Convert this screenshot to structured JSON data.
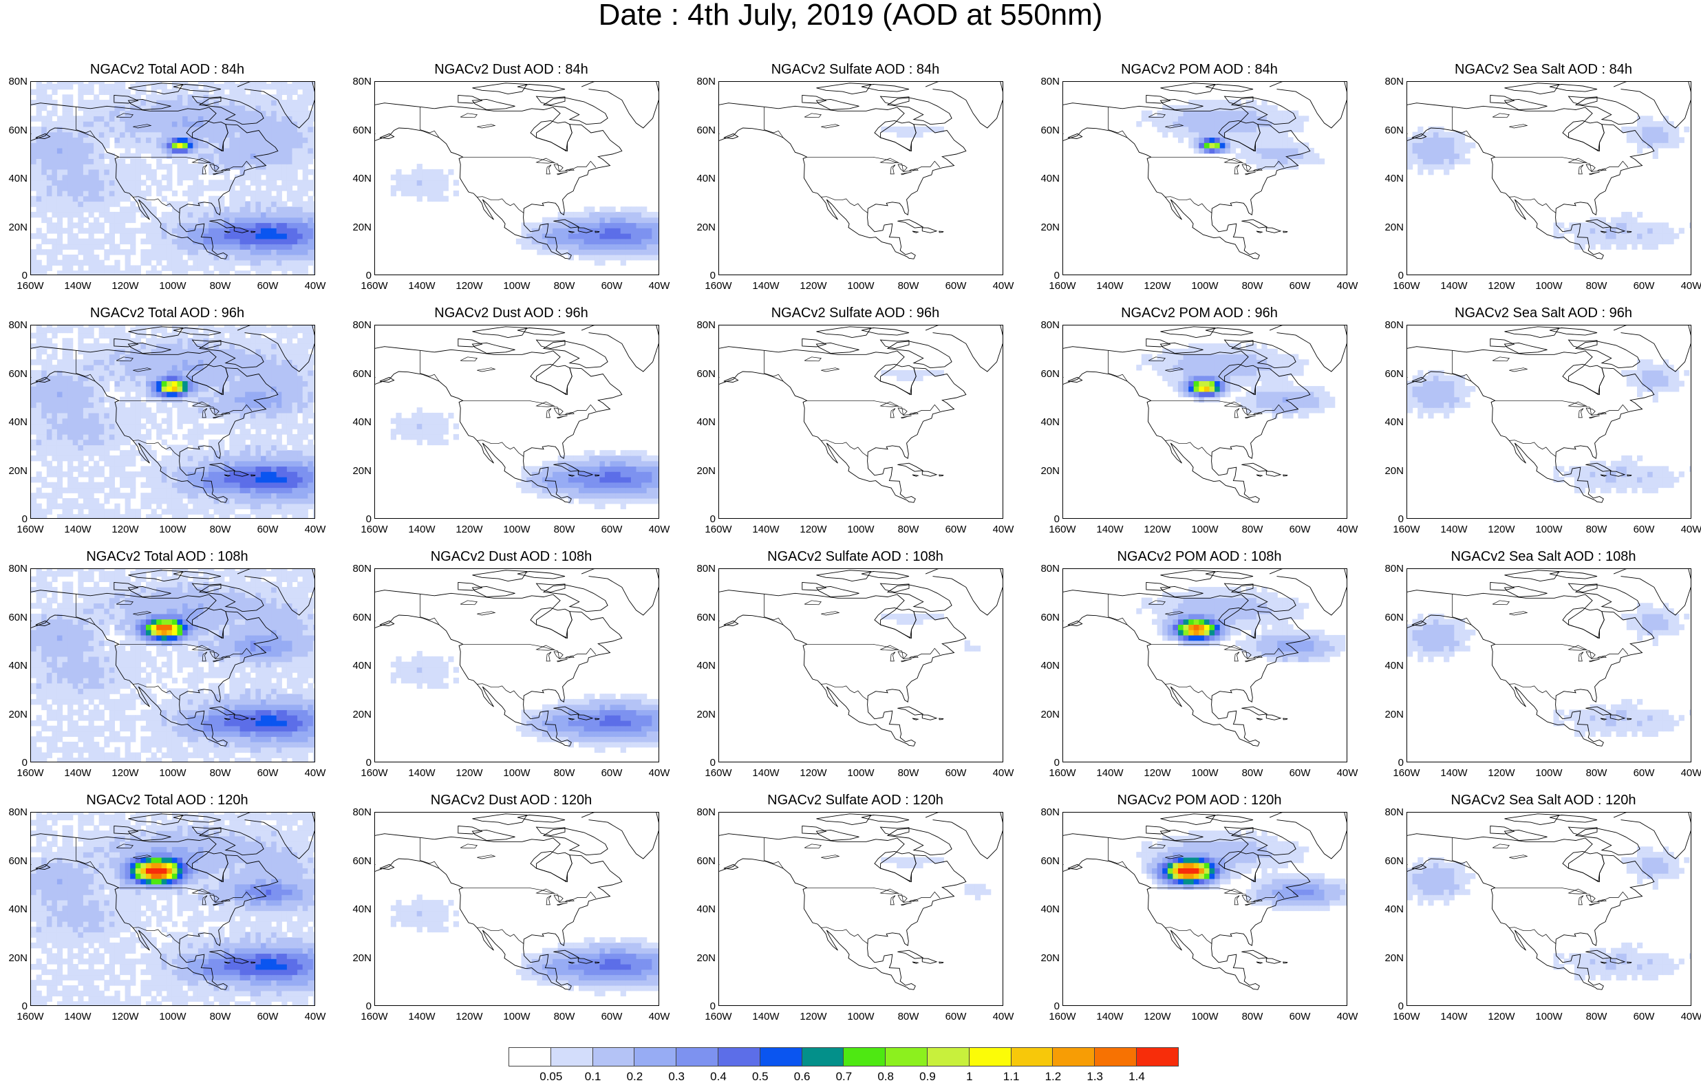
{
  "title": "Date : 4th July, 2019 (AOD at 550nm)",
  "axes": {
    "lat_ticks": [
      "80N",
      "60N",
      "40N",
      "20N",
      "0"
    ],
    "lon_ticks": [
      "160W",
      "140W",
      "120W",
      "100W",
      "80W",
      "60W",
      "40W"
    ]
  },
  "columns": [
    {
      "key": "total",
      "name": "Total AOD"
    },
    {
      "key": "dust",
      "name": "Dust AOD"
    },
    {
      "key": "sulfate",
      "name": "Sulfate AOD"
    },
    {
      "key": "pom",
      "name": "POM AOD"
    },
    {
      "key": "seasalt",
      "name": "Sea Salt AOD"
    }
  ],
  "panels": [
    {
      "title": "NGACv2 Total AOD : 84h",
      "species": "total",
      "hour": 84
    },
    {
      "title": "NGACv2 Dust AOD : 84h",
      "species": "dust",
      "hour": 84
    },
    {
      "title": "NGACv2 Sulfate AOD : 84h",
      "species": "sulfate",
      "hour": 84
    },
    {
      "title": "NGACv2 POM AOD : 84h",
      "species": "pom",
      "hour": 84
    },
    {
      "title": "NGACv2 Sea Salt AOD : 84h",
      "species": "seasalt",
      "hour": 84
    },
    {
      "title": "NGACv2 Total AOD : 96h",
      "species": "total",
      "hour": 96
    },
    {
      "title": "NGACv2 Dust AOD : 96h",
      "species": "dust",
      "hour": 96
    },
    {
      "title": "NGACv2 Sulfate AOD : 96h",
      "species": "sulfate",
      "hour": 96
    },
    {
      "title": "NGACv2 POM AOD : 96h",
      "species": "pom",
      "hour": 96
    },
    {
      "title": "NGACv2 Sea Salt AOD : 96h",
      "species": "seasalt",
      "hour": 96
    },
    {
      "title": "NGACv2 Total AOD : 108h",
      "species": "total",
      "hour": 108
    },
    {
      "title": "NGACv2 Dust AOD : 108h",
      "species": "dust",
      "hour": 108
    },
    {
      "title": "NGACv2 Sulfate AOD : 108h",
      "species": "sulfate",
      "hour": 108
    },
    {
      "title": "NGACv2 POM AOD : 108h",
      "species": "pom",
      "hour": 108
    },
    {
      "title": "NGACv2 Sea Salt AOD : 108h",
      "species": "seasalt",
      "hour": 108
    },
    {
      "title": "NGACv2 Total AOD : 120h",
      "species": "total",
      "hour": 120
    },
    {
      "title": "NGACv2 Dust AOD : 120h",
      "species": "dust",
      "hour": 120
    },
    {
      "title": "NGACv2 Sulfate AOD : 120h",
      "species": "sulfate",
      "hour": 120
    },
    {
      "title": "NGACv2 POM AOD : 120h",
      "species": "pom",
      "hour": 120
    },
    {
      "title": "NGACv2 Sea Salt  AOD : 120h",
      "species": "seasalt",
      "hour": 120
    }
  ],
  "colorbar": {
    "labels": [
      "0.05",
      "0.1",
      "0.2",
      "0.3",
      "0.4",
      "0.5",
      "0.6",
      "0.7",
      "0.8",
      "0.9",
      "1",
      "1.1",
      "1.2",
      "1.3",
      "1.4"
    ],
    "colors": [
      "#ffffff",
      "#d3ddfb",
      "#b4c3f6",
      "#97acf4",
      "#7d92f0",
      "#5c6ee8",
      "#0a55f0",
      "#03908a",
      "#4ee812",
      "#8cf01e",
      "#c8f03c",
      "#fcfc07",
      "#f7c80a",
      "#f79d05",
      "#f77202",
      "#f72d0a"
    ]
  }
}
